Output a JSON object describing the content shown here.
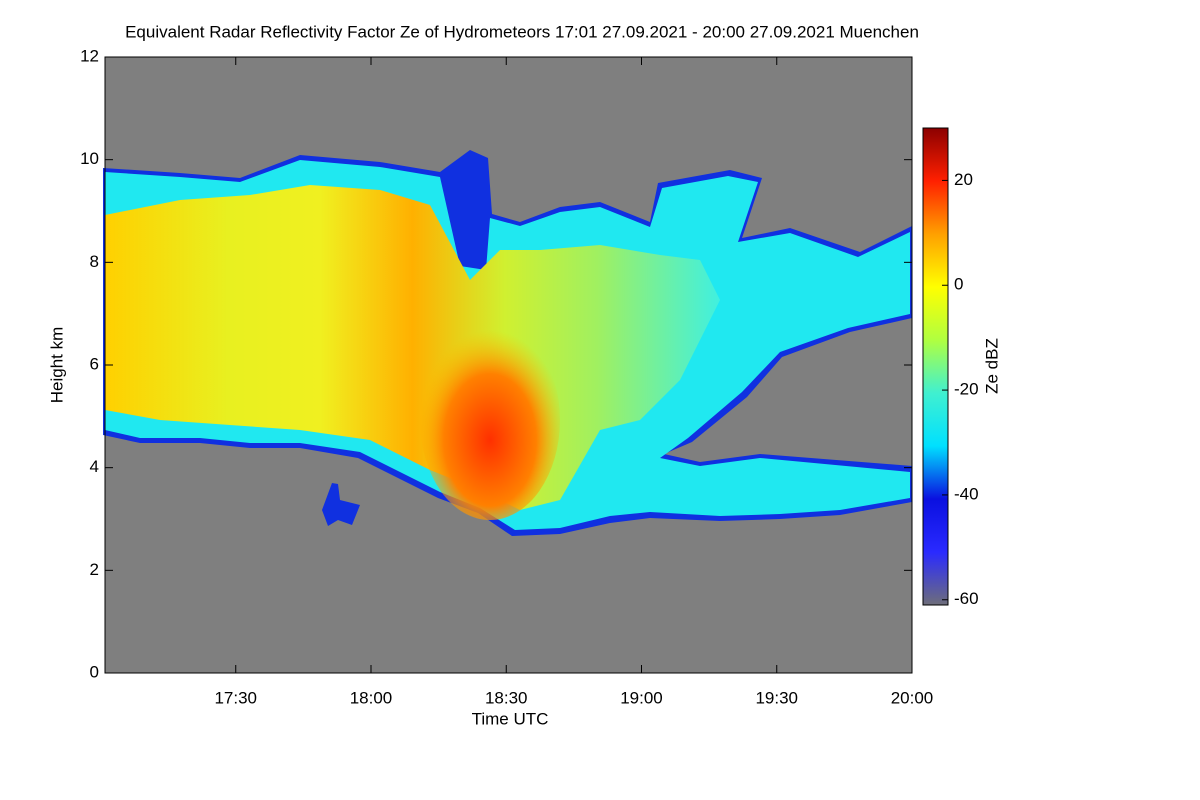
{
  "chart_data": {
    "type": "heatmap",
    "title": "Equivalent Radar Reflectivity Factor Ze of Hydrometeors   17:01 27.09.2021 - 20:00 27.09.2021 Muenchen",
    "x_label": "Time UTC",
    "y_label": "Height km",
    "xlim": [
      1,
      180
    ],
    "xticks": [
      {
        "value": 30,
        "label": "17:30"
      },
      {
        "value": 60,
        "label": "18:00"
      },
      {
        "value": 90,
        "label": "18:30"
      },
      {
        "value": 120,
        "label": "19:00"
      },
      {
        "value": 150,
        "label": "19:30"
      },
      {
        "value": 180,
        "label": "20:00"
      }
    ],
    "ylim": [
      0,
      12
    ],
    "yticks": [
      0,
      2,
      4,
      6,
      8,
      10,
      12
    ],
    "colorbar_label": "Ze dBZ",
    "zlim": [
      -61,
      30
    ],
    "zticks": [
      -60,
      -40,
      -20,
      0,
      20
    ],
    "colormap": [
      "#6e6e7a",
      "#2a2aff",
      "#0a10e0",
      "#00e0ff",
      "#40f0d0",
      "#b0ff40",
      "#ffff00",
      "#ffa000",
      "#ff2000",
      "#8c0000"
    ],
    "background_color": "#7f7f7f"
  }
}
